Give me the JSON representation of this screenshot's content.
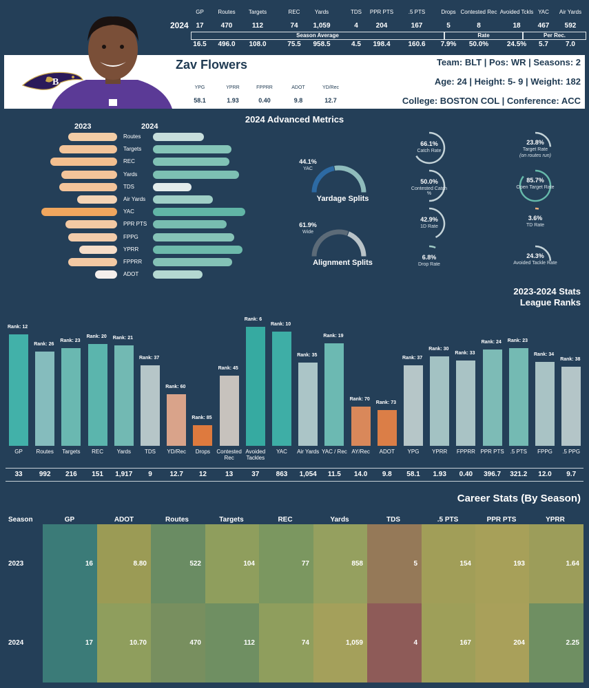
{
  "season_top": {
    "label": "2024",
    "headers": [
      "GP",
      "Routes",
      "Targets",
      "REC",
      "Yards",
      "TDS",
      "PPR PTS",
      ".5 PTS",
      "Drops",
      "Contested Rec",
      "Avoided Tckls",
      "YAC",
      "Air Yards"
    ],
    "values": [
      "17",
      "470",
      "112",
      "74",
      "1,059",
      "4",
      "204",
      "167",
      "5",
      "8",
      "18",
      "467",
      "592"
    ],
    "group_labels": [
      "Season Average",
      "Rate",
      "Per Rec."
    ],
    "averages": [
      "16.5",
      "496.0",
      "108.0",
      "75.5",
      "958.5",
      "4.5",
      "198.4",
      "160.6",
      "7.9%",
      "50.0%",
      "24.5%",
      "5.7",
      "7.0"
    ]
  },
  "player": {
    "name": "Zav Flowers",
    "line1": "Team: BLT  | Pos: WR | Seasons: 2",
    "line2": "Age: 24 | Height: 5- 9 | Weight: 182",
    "line3": "College: BOSTON COL  | Conference: ACC",
    "mini_headers": [
      "YPG",
      "YPRR",
      "FPPRR",
      "ADOT",
      "YD/Rec"
    ],
    "mini_values": [
      "58.1",
      "1.93",
      "0.40",
      "9.8",
      "12.7"
    ]
  },
  "colors": {
    "background": "#243f58",
    "teal": "#3aa9a0",
    "orange": "#e07b3e",
    "peach": "#f2c49b",
    "gray": "#b9c6cb"
  },
  "icons": {
    "team_logo": "ravens-logo-icon",
    "headshot": "player-headshot"
  },
  "advanced": {
    "title": "2024 Advanced Metrics",
    "year_left": "2023",
    "year_right": "2024",
    "metrics": [
      "Routes",
      "Targets",
      "REC",
      "Yards",
      "TDS",
      "Air Yards",
      "YAC",
      "PPR PTS",
      "FPPG",
      "YPRR",
      "FPPRR",
      "ADOT"
    ],
    "left_norm": [
      0.55,
      0.65,
      0.75,
      0.62,
      0.65,
      0.45,
      0.85,
      0.58,
      0.55,
      0.42,
      0.55,
      0.25
    ],
    "right_norm": [
      0.55,
      0.85,
      0.83,
      0.93,
      0.42,
      0.65,
      1.0,
      0.8,
      0.88,
      0.97,
      0.86,
      0.54
    ],
    "donuts": [
      {
        "pct": "44.1%",
        "label": "YAC",
        "title": "Yardage Splits",
        "fraction": 0.441
      },
      {
        "pct": "61.9%",
        "label": "Wide",
        "title": "Alignment Splits",
        "fraction": 0.619
      }
    ],
    "rates_left": [
      {
        "pct": "66.1%",
        "label": "Catch Rate",
        "fraction": 0.661
      },
      {
        "pct": "50.0%",
        "label": "Contested Catch %",
        "fraction": 0.5
      },
      {
        "pct": "42.9%",
        "label": "1D Rate",
        "fraction": 0.429
      },
      {
        "pct": "6.8%",
        "label": "Drop Rate",
        "fraction": 0.068
      }
    ],
    "rates_right": [
      {
        "pct": "23.8%",
        "label": "Target Rate",
        "sub": "(on routes run)",
        "fraction": 0.238
      },
      {
        "pct": "85.7%",
        "label": "Open Target Rate",
        "fraction": 0.857
      },
      {
        "pct": "3.6%",
        "label": "TD Rate",
        "fraction": 0.036
      },
      {
        "pct": "24.3%",
        "label": "Avoided Tackle Rate",
        "fraction": 0.243
      }
    ]
  },
  "ranks_title_1": "2023-2024 Stats",
  "ranks_title_2": "League Ranks",
  "chart_data": {
    "type": "bar",
    "title": "2023-2024 Stats League Ranks",
    "categories": [
      "GP",
      "Routes",
      "Targets",
      "REC",
      "Yards",
      "TDS",
      "YD/Rec",
      "Drops",
      "Contested Rec",
      "Avoided Tackles",
      "YAC",
      "Air Yards",
      "YAC / Rec",
      "AY/Rec",
      "ADOT",
      "YPG",
      "YPRR",
      "FPPRR",
      "PPR PTS",
      ".5 PTS",
      "FPPG",
      ".5 PPG"
    ],
    "ranks": [
      12,
      26,
      23,
      20,
      21,
      37,
      60,
      85,
      45,
      6,
      10,
      35,
      19,
      70,
      73,
      37,
      30,
      33,
      24,
      23,
      34,
      38
    ],
    "rank_labels": [
      "Rank: 12",
      "Rank: 26",
      "Rank: 23",
      "Rank: 20",
      "Rank: 21",
      "Rank: 37",
      "Rank: 60",
      "Rank: 85",
      "Rank: 45",
      "Rank: 6",
      "Rank: 10",
      "Rank: 35",
      "Rank: 19",
      "Rank: 70",
      "Rank: 73",
      "Rank: 37",
      "Rank: 30",
      "Rank: 33",
      "Rank: 24",
      "Rank: 23",
      "Rank: 34",
      "Rank: 38"
    ],
    "values": [
      "33",
      "992",
      "216",
      "151",
      "1,917",
      "9",
      "12.7",
      "12",
      "13",
      "37",
      "863",
      "1,054",
      "11.5",
      "14.0",
      "9.8",
      "58.1",
      "1.93",
      "0.40",
      "396.7",
      "321.2",
      "12.0",
      "9.7"
    ],
    "colors": [
      "#42b1a9",
      "#85bcbd",
      "#6ab8b1",
      "#5bb5ad",
      "#72b9b3",
      "#b6c6c8",
      "#d9a38a",
      "#de7a3e",
      "#c7c2bd",
      "#36aaa1",
      "#3eaea6",
      "#abc5c7",
      "#6cb9b2",
      "#d9885a",
      "#db7e47",
      "#b6c6c8",
      "#a3c2c3",
      "#a9c3c5",
      "#7dbbb6",
      "#74bab3",
      "#a9c3c5",
      "#b4c5c8"
    ]
  },
  "career": {
    "title": "Career Stats (By Season)",
    "headers": [
      "Season",
      "GP",
      "ADOT",
      "Routes",
      "Targets",
      "REC",
      "Yards",
      "TDS",
      ".5 PTS",
      "PPR PTS",
      "YPRR"
    ],
    "rows": [
      [
        "2023",
        "16",
        "8.80",
        "522",
        "104",
        "77",
        "858",
        "5",
        "154",
        "193",
        "1.64"
      ],
      [
        "2024",
        "17",
        "10.70",
        "470",
        "112",
        "74",
        "1,059",
        "4",
        "167",
        "204",
        "2.25"
      ]
    ],
    "cell_colors": [
      [
        "#3b7b78",
        "#9b9b55",
        "#6a8c63",
        "#8f9e5d",
        "#7b9760",
        "#95a05f",
        "#957958",
        "#a19e58",
        "#a7a059",
        "#9c9d5a"
      ],
      [
        "#3b7b78",
        "#8f9e5d",
        "#788f5f",
        "#6f8f62",
        "#8f9e5d",
        "#a4a05b",
        "#8e5b58",
        "#9e9f59",
        "#a9a05a",
        "#6f8f62"
      ]
    ]
  }
}
